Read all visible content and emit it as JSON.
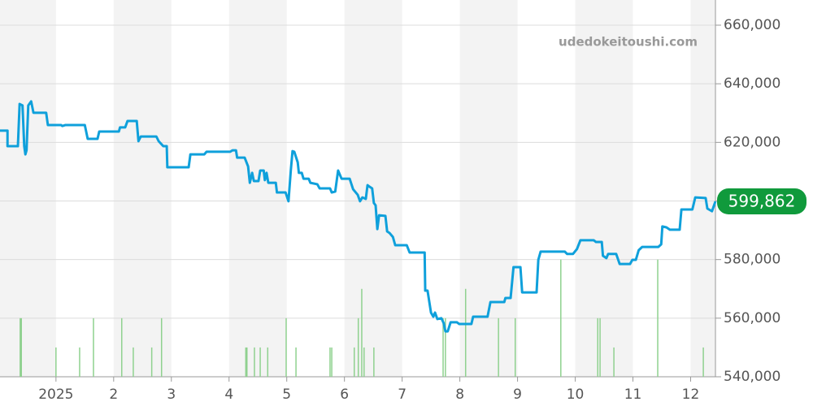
{
  "chart_data": {
    "type": "line",
    "watermark": "udedokeitoushi.com",
    "xlim": [
      0.03,
      12.43
    ],
    "xticks": [
      {
        "value": 1,
        "label": "2025"
      },
      2,
      3,
      4,
      5,
      6,
      7,
      8,
      9,
      10,
      11,
      12
    ],
    "ylim": [
      540000,
      660000
    ],
    "yticks": [
      {
        "value": 540000,
        "label": "540,000"
      },
      {
        "value": 560000,
        "label": "560,000"
      },
      {
        "value": 580000,
        "label": "580,000"
      },
      {
        "value": 600000,
        "label": "600,000"
      },
      {
        "value": 620000,
        "label": "620,000"
      },
      {
        "value": 640000,
        "label": "640,000"
      },
      {
        "value": 660000,
        "label": "660,000"
      }
    ],
    "grid": true,
    "band_color": "#f3f3f3",
    "line": {
      "color": "#0fa0db",
      "x": [
        0.03,
        0.16,
        0.16,
        0.34,
        0.37,
        0.42,
        0.45,
        0.47,
        0.49,
        0.52,
        0.57,
        0.61,
        0.83,
        0.86,
        1.09,
        1.11,
        1.16,
        1.5,
        1.55,
        1.72,
        1.75,
        2.09,
        2.11,
        2.2,
        2.24,
        2.4,
        2.43,
        2.47,
        2.74,
        2.78,
        2.86,
        2.92,
        2.93,
        3.3,
        3.33,
        3.57,
        3.61,
        4.02,
        4.06,
        4.12,
        4.14,
        4.27,
        4.33,
        4.36,
        4.4,
        4.43,
        4.51,
        4.54,
        4.6,
        4.62,
        4.65,
        4.68,
        4.81,
        4.83,
        4.98,
        5.03,
        5.07,
        5.1,
        5.13,
        5.19,
        5.21,
        5.26,
        5.29,
        5.38,
        5.41,
        5.53,
        5.57,
        5.75,
        5.78,
        5.84,
        5.89,
        5.95,
        6.09,
        6.15,
        6.23,
        6.27,
        6.31,
        6.37,
        6.4,
        6.44,
        6.48,
        6.51,
        6.54,
        6.57,
        6.6,
        6.71,
        6.74,
        6.78,
        6.84,
        6.88,
        7.08,
        7.13,
        7.39,
        7.4,
        7.44,
        7.5,
        7.54,
        7.57,
        7.61,
        7.68,
        7.72,
        7.75,
        7.79,
        7.84,
        7.95,
        7.99,
        8.2,
        8.23,
        8.48,
        8.53,
        8.77,
        8.79,
        8.88,
        8.93,
        9.05,
        9.08,
        9.33,
        9.36,
        9.4,
        9.82,
        9.86,
        9.96,
        10.03,
        10.09,
        10.32,
        10.36,
        10.46,
        10.48,
        10.54,
        10.57,
        10.71,
        10.77,
        10.95,
        10.99,
        11.05,
        11.1,
        11.16,
        11.22,
        11.44,
        11.49,
        11.51,
        11.58,
        11.64,
        11.81,
        11.84,
        12.03,
        12.08,
        12.26,
        12.29,
        12.37,
        12.43
      ],
      "values": [
        624000,
        624000,
        618700,
        618700,
        633100,
        632600,
        618700,
        615900,
        617300,
        632600,
        634000,
        630100,
        630100,
        625900,
        625900,
        625600,
        625900,
        625900,
        621200,
        621200,
        623700,
        623700,
        625100,
        625100,
        627300,
        627300,
        620400,
        622000,
        622000,
        620400,
        618700,
        618700,
        611500,
        611500,
        615900,
        615900,
        616800,
        616800,
        617300,
        617300,
        614800,
        614800,
        611800,
        606200,
        609600,
        606800,
        606800,
        610400,
        610400,
        607100,
        609600,
        606200,
        606200,
        602900,
        602900,
        599900,
        610400,
        617000,
        616800,
        613200,
        609600,
        609600,
        607600,
        607600,
        606200,
        605700,
        604300,
        604300,
        602900,
        603200,
        610400,
        607600,
        607600,
        604000,
        602100,
        599900,
        601200,
        600700,
        605400,
        604800,
        604300,
        599300,
        598500,
        590400,
        595100,
        594900,
        589600,
        589100,
        587700,
        584900,
        584900,
        582400,
        582400,
        569400,
        569400,
        561900,
        560500,
        561900,
        559700,
        560000,
        558300,
        555500,
        555500,
        558600,
        558600,
        558000,
        558000,
        560500,
        560500,
        565500,
        565500,
        566900,
        566900,
        577400,
        577400,
        568800,
        568800,
        579900,
        582700,
        582700,
        581900,
        581900,
        583600,
        586600,
        586600,
        586000,
        586000,
        581300,
        580500,
        581900,
        581900,
        578500,
        578500,
        579900,
        579900,
        583200,
        584300,
        584300,
        584300,
        585200,
        591300,
        591000,
        590200,
        590200,
        597100,
        597100,
        601200,
        601000,
        597400,
        596500,
        599862
      ]
    },
    "volume": {
      "color": "#8fd18f",
      "vlim": [
        0,
        12
      ],
      "x": [
        0.38,
        0.4,
        1.0,
        1.41,
        1.65,
        2.14,
        2.34,
        2.66,
        2.83,
        4.29,
        4.31,
        4.44,
        4.54,
        4.67,
        4.99,
        5.16,
        5.75,
        5.78,
        6.17,
        6.24,
        6.3,
        6.34,
        6.51,
        7.71,
        7.75,
        8.1,
        8.67,
        8.96,
        9.75,
        10.39,
        10.43,
        10.67,
        11.43,
        12.22
      ],
      "values": [
        2,
        2,
        1,
        1,
        2,
        2,
        1,
        1,
        2,
        1,
        1,
        1,
        1,
        1,
        2,
        1,
        1,
        1,
        1,
        2,
        3,
        1,
        1,
        2,
        2,
        3,
        2,
        2,
        4,
        2,
        2,
        1,
        4,
        1
      ]
    },
    "current": {
      "value": 599862,
      "label": "599,862",
      "color": "#109a3c"
    }
  }
}
